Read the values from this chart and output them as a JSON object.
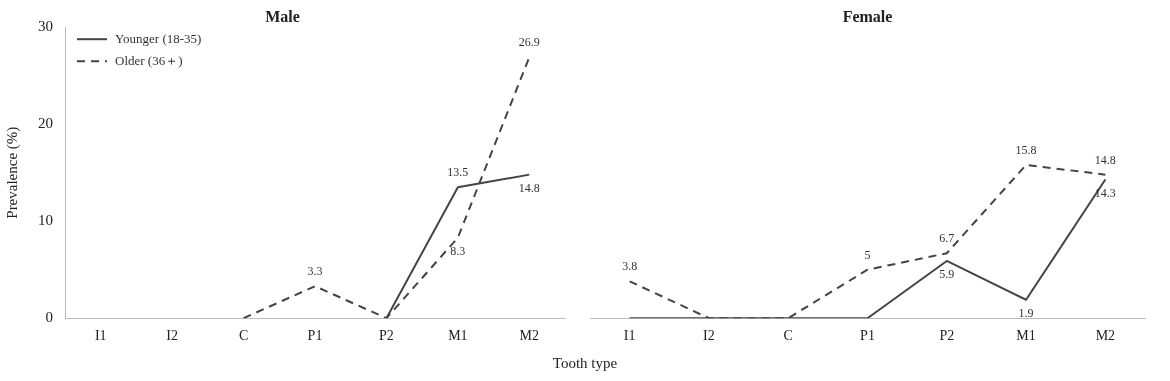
{
  "chart_data": [
    {
      "type": "line",
      "title": "Male",
      "ylabel": "Prevalence (%)",
      "categories": [
        "I1",
        "I2",
        "C",
        "P1",
        "P2",
        "M1",
        "M2"
      ],
      "ylim": [
        0,
        30
      ],
      "yticks": [
        0,
        10,
        20,
        30
      ],
      "grid": false,
      "legend": "top left",
      "marker": "none",
      "series": [
        {
          "name": "Younger (18-35)",
          "color": "#444444",
          "line_style": "solid",
          "values": [
            null,
            null,
            null,
            null,
            0,
            13.5,
            14.8
          ],
          "value_labels": [
            null,
            null,
            null,
            null,
            null,
            "13.5",
            "14.8"
          ]
        },
        {
          "name": "Older (36＋)",
          "color": "#444444",
          "line_style": "dashed",
          "values": [
            null,
            null,
            0,
            3.3,
            0,
            8.3,
            26.9
          ],
          "value_labels": [
            null,
            null,
            null,
            "3.3",
            null,
            "8.3",
            "26.9"
          ]
        }
      ]
    },
    {
      "type": "line",
      "title": "Female",
      "xlabel": "Tooth type",
      "categories": [
        "I1",
        "I2",
        "C",
        "P1",
        "P2",
        "M1",
        "M2"
      ],
      "ylim": [
        0,
        30
      ],
      "tick_labels": "x",
      "grid": false,
      "legend": false,
      "marker": "none",
      "series": [
        {
          "color": "#444444",
          "line_style": "solid",
          "values": [
            0,
            0,
            0,
            0,
            5.9,
            1.9,
            14.3
          ],
          "value_labels": [
            null,
            null,
            null,
            null,
            "5.9",
            "1.9",
            "14.3"
          ]
        },
        {
          "color": "#444444",
          "line_style": "dashed",
          "values": [
            3.8,
            0,
            0,
            5,
            6.7,
            15.8,
            14.8
          ],
          "value_labels": [
            "3.8",
            null,
            null,
            "5",
            "6.7",
            "15.8",
            "14.8"
          ]
        }
      ]
    }
  ]
}
